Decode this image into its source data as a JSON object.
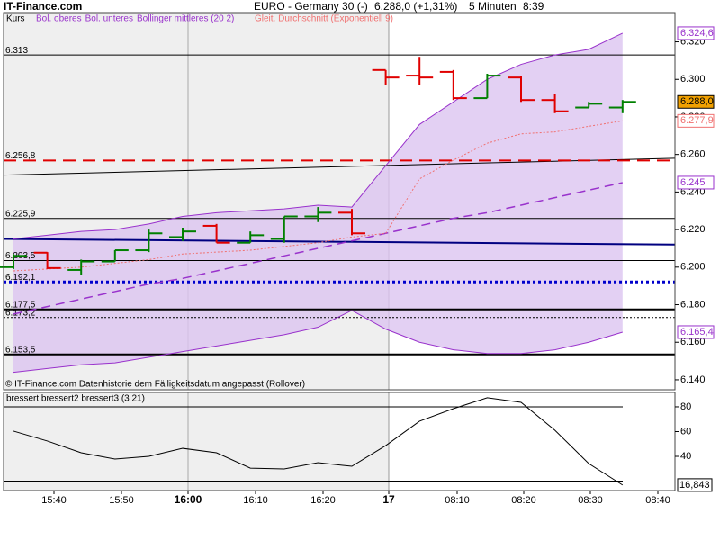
{
  "chart_data": [
    {
      "type": "ohlc",
      "site": "IT-Finance.com",
      "title": "EURO - Germany 30 (-)",
      "quote": "6.288,0 (+1,31%)",
      "interval": "5 Minuten",
      "time": "8:39",
      "y_label": "Kurs",
      "footer": "© IT-Finance.com  Datenhistorie dem Fälligkeitsdatum angepasst (Rollover)",
      "up_color": "#008000",
      "down_color": "#e00000",
      "open": [
        6.2,
        6.2077,
        6.1985,
        6.203,
        6.209,
        6.216,
        6.222,
        6.213,
        6.215,
        6.227,
        6.229,
        6.305,
        6.302,
        6.304,
        6.29,
        6.301,
        6.289,
        6.285,
        6.285
      ],
      "high": [
        6.207,
        6.208,
        6.204,
        6.209,
        6.22,
        6.221,
        6.223,
        6.219,
        6.227,
        6.232,
        6.231,
        6.305,
        6.312,
        6.305,
        6.303,
        6.302,
        6.292,
        6.288,
        6.289
      ],
      "low": [
        6.199,
        6.199,
        6.196,
        6.203,
        6.208,
        6.214,
        6.213,
        6.213,
        6.213,
        6.224,
        6.217,
        6.297,
        6.297,
        6.289,
        6.29,
        6.288,
        6.282,
        6.285,
        6.282
      ],
      "close": [
        6.206,
        6.1995,
        6.203,
        6.209,
        6.218,
        6.219,
        6.213,
        6.217,
        6.227,
        6.229,
        6.218,
        6.301,
        6.301,
        6.29,
        6.302,
        6.289,
        6.283,
        6.287,
        6.288
      ],
      "close_end_label": "6.288,0",
      "close_end_color": "#f0a000",
      "band_color": "#dcc4f0",
      "series": [
        {
          "name": "Bol. oberes",
          "color": "#9932cc",
          "style": "solid",
          "end_label": "6.324,6",
          "values": [
            6.215,
            6.217,
            6.219,
            6.22,
            6.223,
            6.227,
            6.229,
            6.23,
            6.231,
            6.233,
            6.232,
            6.254,
            6.276,
            6.288,
            6.3,
            6.308,
            6.313,
            6.316,
            6.3246
          ]
        },
        {
          "name": "Bol. unteres",
          "color": "#9932cc",
          "style": "solid",
          "end_label": "6.165,4",
          "values": [
            6.144,
            6.146,
            6.148,
            6.149,
            6.152,
            6.155,
            6.158,
            6.161,
            6.164,
            6.168,
            6.177,
            6.167,
            6.16,
            6.156,
            6.154,
            6.154,
            6.156,
            6.16,
            6.1654
          ]
        },
        {
          "name": "Bollinger mittleres (20 2)",
          "color": "#9932cc",
          "style": "dashed",
          "end_label": "6.245",
          "values": [
            6.175,
            6.179,
            6.183,
            6.187,
            6.191,
            6.194,
            6.198,
            6.202,
            6.206,
            6.21,
            6.214,
            6.218,
            6.222,
            6.226,
            6.229,
            6.233,
            6.237,
            6.241,
            6.245
          ]
        },
        {
          "name": "Gleit. Durchschnitt (Exponentiell 9)",
          "color": "#f07070",
          "style": "dotted",
          "end_label": "6.277,9",
          "values": [
            6.198,
            6.199,
            6.2,
            6.202,
            6.204,
            6.207,
            6.208,
            6.209,
            6.211,
            6.213,
            6.216,
            6.218,
            6.247,
            6.257,
            6.266,
            6.271,
            6.272,
            6.275,
            6.2779
          ]
        }
      ],
      "levels": [
        {
          "value": 6.313,
          "label": "6.313",
          "color": "#000000",
          "width": 1,
          "dash": "none"
        },
        {
          "value": 6.2568,
          "label": "6.256,8",
          "color": "#e00000",
          "width": 2,
          "dash": "14 8"
        },
        {
          "value": 6.2259,
          "label": "6.225,9",
          "color": "#000000",
          "width": 1,
          "dash": "none"
        },
        {
          "value": 6.2035,
          "label": "6.203,5",
          "color": "#000000",
          "width": 1,
          "dash": "none"
        },
        {
          "value": 6.1921,
          "label": "6.192,1",
          "color": "#0000cc",
          "width": 3,
          "dash": "3 3"
        },
        {
          "value": 6.1775,
          "label": "6.177,5",
          "color": "#000000",
          "width": 2,
          "dash": "none"
        },
        {
          "value": 6.1732,
          "label": "6.173,2",
          "color": "#000000",
          "width": 1,
          "dash": "2 2"
        },
        {
          "value": 6.1535,
          "label": "6.153,5",
          "color": "#000000",
          "width": 2,
          "dash": "none"
        }
      ],
      "trend_lines": [
        {
          "color": "#000000",
          "width": 1,
          "values": [
            6.249,
            6.258
          ]
        },
        {
          "color": "#000080",
          "width": 2,
          "values": [
            6.215,
            6.212
          ]
        }
      ],
      "ylim": [
        6.1347,
        6.3356
      ],
      "yticks": [
        {
          "value": 6.14,
          "label": "6.140"
        },
        {
          "value": 6.16,
          "label": "6.160"
        },
        {
          "value": 6.18,
          "label": "6.180"
        },
        {
          "value": 6.2,
          "label": "6.200"
        },
        {
          "value": 6.22,
          "label": "6.220"
        },
        {
          "value": 6.24,
          "label": "6.240"
        },
        {
          "value": 6.26,
          "label": "6.260"
        },
        {
          "value": 6.28,
          "label": "6.280"
        },
        {
          "value": 6.3,
          "label": "6.300"
        },
        {
          "value": 6.32,
          "label": "6.320"
        }
      ],
      "x_labels": [
        "15:40",
        "15:50",
        "16:00",
        "16:10",
        "16:20",
        "17",
        "08:10",
        "08:20",
        "08:30",
        "08:40"
      ]
    },
    {
      "type": "line",
      "title": "bressert bressert2 bressert3 (3 21)",
      "color": "#000000",
      "values": [
        60.4,
        52.4,
        42.9,
        37.8,
        40.0,
        46.5,
        42.9,
        30.5,
        29.8,
        34.9,
        32.0,
        48.7,
        68.4,
        78.5,
        87.3,
        83.6,
        61.1,
        34.2,
        16.843
      ],
      "end_label": "16,843",
      "levels": [
        80,
        20
      ],
      "ylim": [
        12.4,
        91.6
      ],
      "yticks": [
        40,
        60,
        80
      ]
    }
  ]
}
